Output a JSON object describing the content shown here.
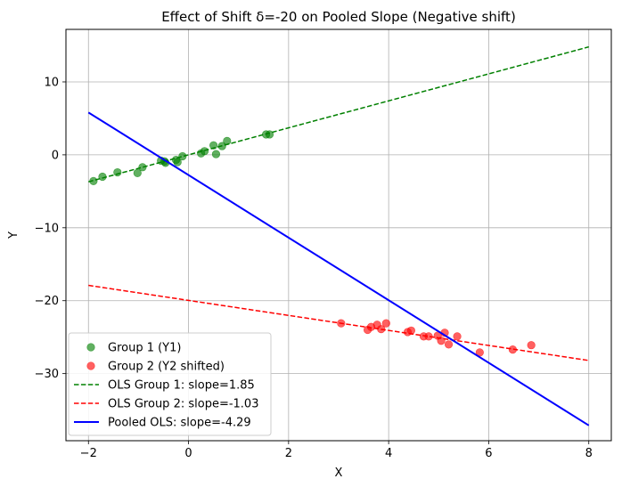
{
  "chart_data": {
    "type": "scatter",
    "title": "Effect of Shift δ=-20 on Pooled Slope (Negative shift)",
    "xlabel": "X",
    "ylabel": "Y",
    "xlim": [
      -2.45,
      8.45
    ],
    "ylim": [
      -39.2,
      17.2
    ],
    "xticks": [
      -2,
      0,
      2,
      4,
      6,
      8
    ],
    "yticks": [
      -30,
      -20,
      -10,
      0,
      10
    ],
    "tick_labels_x": [
      "−2",
      "0",
      "2",
      "4",
      "6",
      "8"
    ],
    "tick_labels_y": [
      "−30",
      "−20",
      "−10",
      "0",
      "10"
    ],
    "grid": true,
    "legend_position": "lower-left",
    "scatter_series": [
      {
        "name": "Group 1 (Y1)",
        "color": "#008000",
        "points": [
          [
            -1.9,
            -3.6
          ],
          [
            -1.72,
            -3.0
          ],
          [
            -1.42,
            -2.4
          ],
          [
            -1.02,
            -2.5
          ],
          [
            -0.92,
            -1.7
          ],
          [
            -0.55,
            -0.8
          ],
          [
            -0.48,
            -0.9
          ],
          [
            -0.46,
            -1.1
          ],
          [
            -0.25,
            -0.7
          ],
          [
            -0.22,
            -1.0
          ],
          [
            -0.12,
            -0.2
          ],
          [
            0.25,
            0.2
          ],
          [
            0.32,
            0.5
          ],
          [
            0.5,
            1.3
          ],
          [
            0.55,
            0.1
          ],
          [
            0.67,
            1.2
          ],
          [
            0.77,
            1.9
          ],
          [
            1.55,
            2.8
          ],
          [
            1.62,
            2.8
          ]
        ]
      },
      {
        "name": "Group 2 (Y2 shifted)",
        "color": "#ff0000",
        "points": [
          [
            3.05,
            -23.1
          ],
          [
            3.58,
            -24.0
          ],
          [
            3.65,
            -23.6
          ],
          [
            3.77,
            -23.3
          ],
          [
            3.85,
            -23.9
          ],
          [
            3.95,
            -23.1
          ],
          [
            4.38,
            -24.3
          ],
          [
            4.45,
            -24.1
          ],
          [
            4.7,
            -24.9
          ],
          [
            4.8,
            -24.9
          ],
          [
            4.98,
            -24.8
          ],
          [
            5.05,
            -25.5
          ],
          [
            5.12,
            -24.4
          ],
          [
            5.2,
            -26.0
          ],
          [
            5.37,
            -24.9
          ],
          [
            5.82,
            -27.1
          ],
          [
            6.48,
            -26.7
          ],
          [
            6.85,
            -26.1
          ]
        ]
      }
    ],
    "line_series": [
      {
        "name": "OLS Group 1: slope=1.85",
        "color": "#008000",
        "style": "dashed",
        "x": [
          -2,
          8
        ],
        "y": [
          -3.7,
          14.8
        ]
      },
      {
        "name": "OLS Group 2: slope=-1.03",
        "color": "#ff0000",
        "style": "dashed",
        "x": [
          -2,
          8
        ],
        "y": [
          -17.9,
          -28.2
        ]
      },
      {
        "name": "Pooled OLS: slope=-4.29",
        "color": "#0000ff",
        "style": "solid",
        "x": [
          -2,
          8
        ],
        "y": [
          5.8,
          -37.1
        ]
      }
    ]
  }
}
